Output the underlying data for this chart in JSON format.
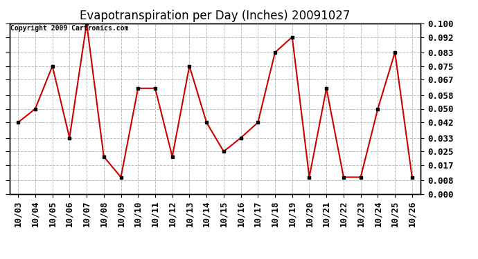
{
  "title": "Evapotranspiration per Day (Inches) 20091027",
  "copyright": "Copyright 2009 Cartronics.com",
  "x_labels": [
    "10/03",
    "10/04",
    "10/05",
    "10/06",
    "10/07",
    "10/08",
    "10/09",
    "10/10",
    "10/11",
    "10/12",
    "10/13",
    "10/14",
    "10/15",
    "10/16",
    "10/17",
    "10/18",
    "10/19",
    "10/20",
    "10/21",
    "10/22",
    "10/23",
    "10/24",
    "10/25",
    "10/26"
  ],
  "y_values": [
    0.042,
    0.05,
    0.075,
    0.033,
    0.1,
    0.022,
    0.01,
    0.062,
    0.062,
    0.022,
    0.075,
    0.042,
    0.025,
    0.033,
    0.042,
    0.083,
    0.092,
    0.01,
    0.062,
    0.01,
    0.01,
    0.05,
    0.083,
    0.01
  ],
  "y_ticks": [
    0.0,
    0.008,
    0.017,
    0.025,
    0.033,
    0.042,
    0.05,
    0.058,
    0.067,
    0.075,
    0.083,
    0.092,
    0.1
  ],
  "ylim": [
    0.0,
    0.1
  ],
  "line_color": "#cc0000",
  "marker": "s",
  "marker_size": 3,
  "bg_color": "#ffffff",
  "grid_color": "#bbbbbb",
  "title_fontsize": 12,
  "tick_fontsize": 9,
  "copyright_fontsize": 7
}
